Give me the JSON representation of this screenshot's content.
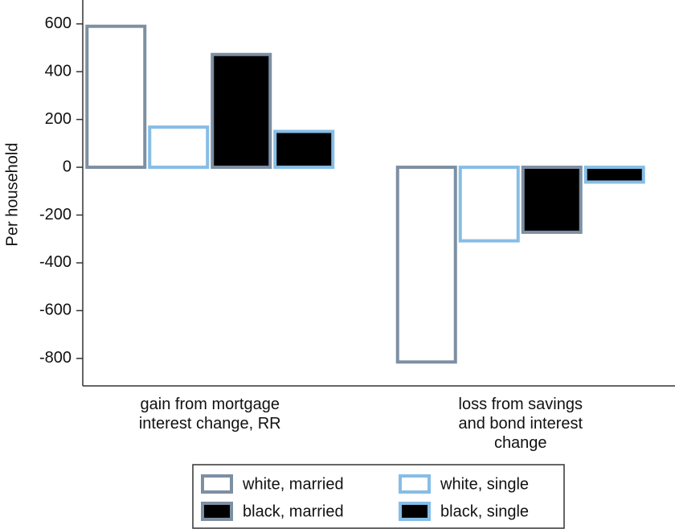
{
  "chart_data": {
    "type": "bar",
    "ylabel": "Per household",
    "categories": [
      "gain from mortgage\ninterest change, RR",
      "loss from savings\nand bond interest\nchange"
    ],
    "series": [
      {
        "name": "white, married",
        "color": "#7d8fa3",
        "fill": "#ffffff",
        "values": [
          590,
          -815
        ]
      },
      {
        "name": "white, single",
        "color": "#86bde6",
        "fill": "#ffffff",
        "values": [
          168,
          -308
        ]
      },
      {
        "name": "black, married",
        "color": "#7d8fa3",
        "fill": "#000000",
        "values": [
          472,
          -272
        ]
      },
      {
        "name": "black, single",
        "color": "#86bde6",
        "fill": "#000000",
        "values": [
          150,
          -62
        ]
      }
    ],
    "ylim": [
      -915,
      700
    ],
    "yticks": [
      -800,
      -600,
      -400,
      -200,
      0,
      200,
      400,
      600
    ],
    "grid": false,
    "legend": "bottom"
  }
}
